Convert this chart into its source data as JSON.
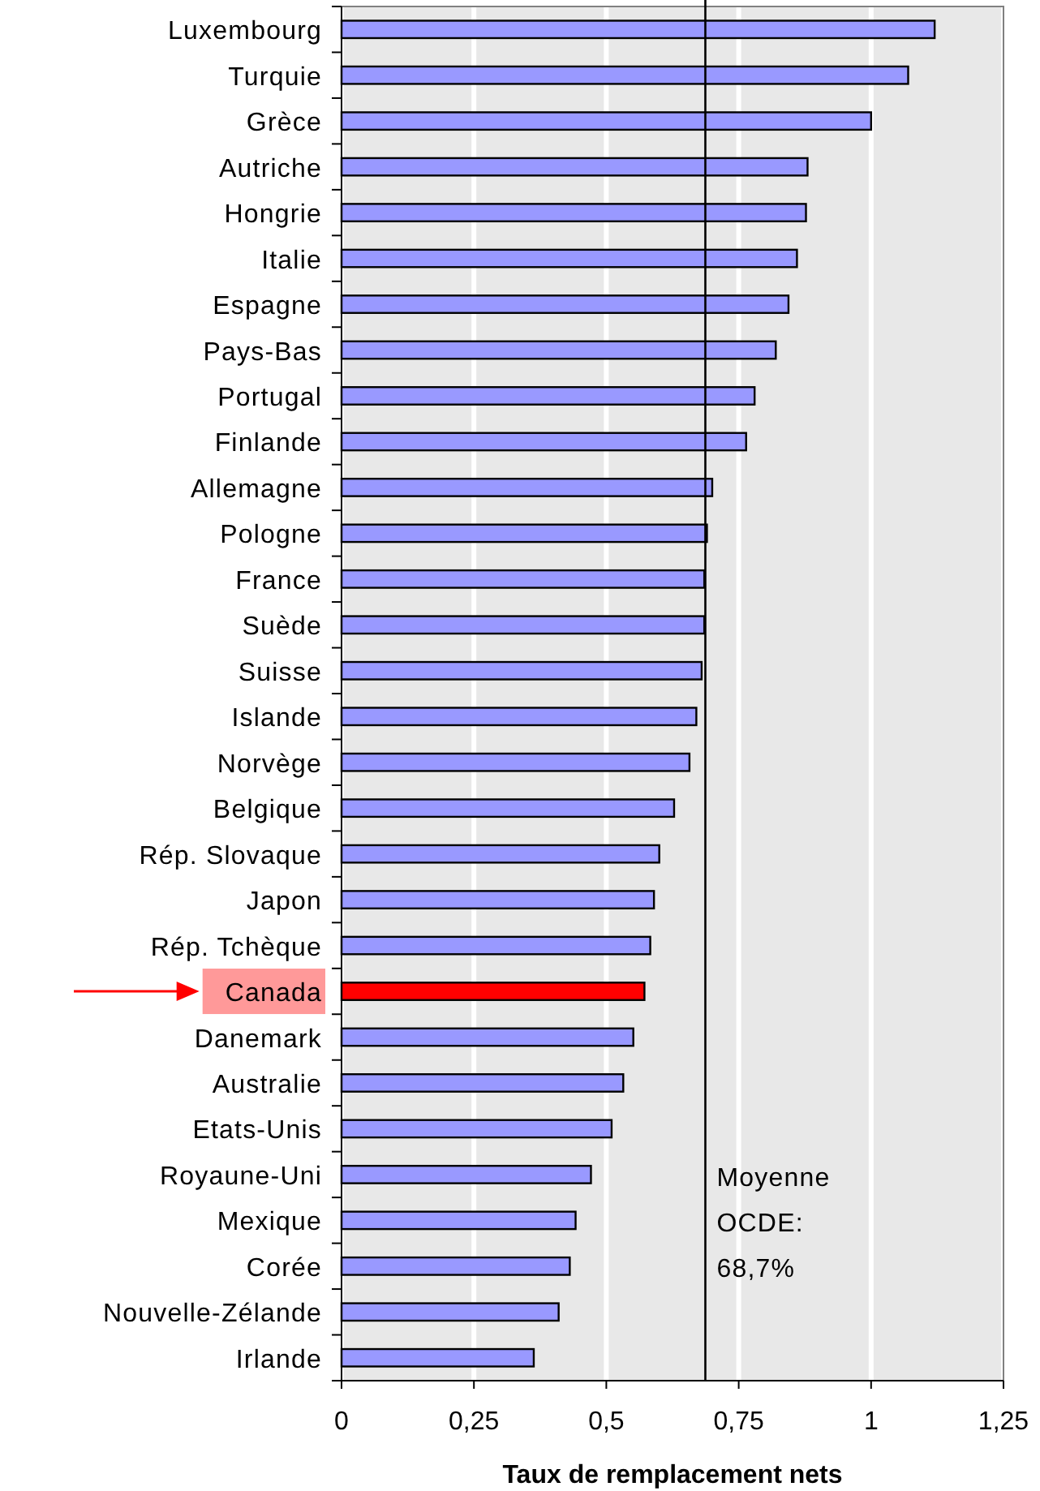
{
  "chart_data": {
    "type": "bar",
    "orientation": "horizontal",
    "xlabel": "Taux de remplacement nets",
    "categories": [
      "Luxembourg",
      "Turquie",
      "Grèce",
      "Autriche",
      "Hongrie",
      "Italie",
      "Espagne",
      "Pays-Bas",
      "Portugal",
      "Finlande",
      "Allemagne",
      "Pologne",
      "France",
      "Suède",
      "Suisse",
      "Islande",
      "Norvège",
      "Belgique",
      "Rép. Slovaque",
      "Japon",
      "Rép. Tchèque",
      "Canada",
      "Danemark",
      "Australie",
      "Etats-Unis",
      "Royaune-Uni",
      "Mexique",
      "Corée",
      "Nouvelle-Zélande",
      "Irlande"
    ],
    "values": [
      1.12,
      1.07,
      1.0,
      0.88,
      0.877,
      0.86,
      0.844,
      0.82,
      0.78,
      0.764,
      0.7,
      0.69,
      0.685,
      0.685,
      0.68,
      0.67,
      0.657,
      0.628,
      0.6,
      0.59,
      0.583,
      0.572,
      0.551,
      0.532,
      0.51,
      0.471,
      0.442,
      0.431,
      0.41,
      0.363
    ],
    "colors": [
      "#9999ff",
      "#9999ff",
      "#9999ff",
      "#9999ff",
      "#9999ff",
      "#9999ff",
      "#9999ff",
      "#9999ff",
      "#9999ff",
      "#9999ff",
      "#9999ff",
      "#9999ff",
      "#9999ff",
      "#9999ff",
      "#9999ff",
      "#9999ff",
      "#9999ff",
      "#9999ff",
      "#9999ff",
      "#9999ff",
      "#9999ff",
      "#ff0000",
      "#9999ff",
      "#9999ff",
      "#9999ff",
      "#9999ff",
      "#9999ff",
      "#9999ff",
      "#9999ff",
      "#9999ff"
    ],
    "xlim": [
      0,
      1.25
    ],
    "xticks": [
      0,
      {
        "value": 0.25,
        "label": "0,25"
      },
      {
        "value": 0.5,
        "label": "0,5"
      },
      {
        "value": 0.75,
        "label": "0,75"
      },
      1,
      {
        "value": 1.25,
        "label": "1,25"
      }
    ],
    "grid": "x",
    "ref_lines": [
      {
        "axis": "x",
        "value": 0.687,
        "label": "Moyenne OCDE: 68,7%",
        "color": "#000000"
      }
    ]
  }
}
